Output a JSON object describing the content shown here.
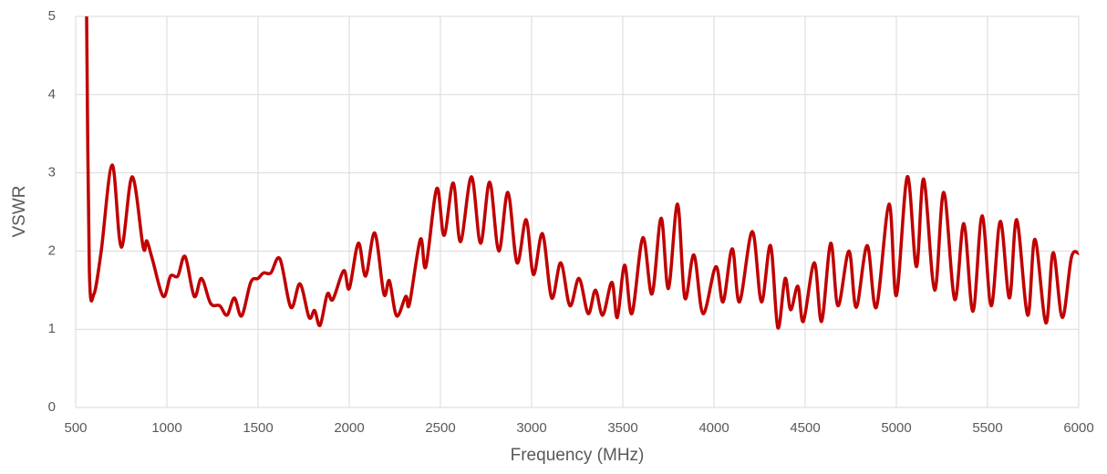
{
  "chart_data": {
    "type": "line",
    "x_label": "Frequency (MHz)",
    "y_label": "VSWR",
    "x": [
      560,
      575,
      600,
      640,
      700,
      750,
      810,
      870,
      890,
      920,
      980,
      1020,
      1060,
      1100,
      1150,
      1190,
      1240,
      1290,
      1330,
      1370,
      1410,
      1460,
      1500,
      1530,
      1570,
      1620,
      1680,
      1730,
      1780,
      1810,
      1840,
      1880,
      1910,
      1970,
      2000,
      2050,
      2090,
      2140,
      2190,
      2220,
      2260,
      2310,
      2330,
      2390,
      2420,
      2480,
      2520,
      2570,
      2610,
      2670,
      2720,
      2770,
      2820,
      2870,
      2920,
      2970,
      3010,
      3060,
      3110,
      3160,
      3210,
      3260,
      3310,
      3350,
      3390,
      3440,
      3470,
      3510,
      3550,
      3610,
      3660,
      3710,
      3750,
      3800,
      3840,
      3890,
      3940,
      4010,
      4050,
      4100,
      4140,
      4210,
      4260,
      4310,
      4350,
      4390,
      4420,
      4460,
      4490,
      4550,
      4590,
      4640,
      4680,
      4740,
      4780,
      4840,
      4890,
      4960,
      5000,
      5060,
      5110,
      5150,
      5210,
      5260,
      5320,
      5370,
      5420,
      5470,
      5520,
      5570,
      5620,
      5660,
      5720,
      5760,
      5820,
      5860,
      5910,
      5960,
      6000
    ],
    "values": [
      5,
      1.75,
      1.45,
      2.0,
      3.1,
      2.05,
      2.95,
      2.05,
      2.13,
      1.9,
      1.42,
      1.68,
      1.68,
      1.93,
      1.42,
      1.65,
      1.33,
      1.3,
      1.18,
      1.4,
      1.17,
      1.6,
      1.65,
      1.72,
      1.72,
      1.9,
      1.28,
      1.58,
      1.15,
      1.24,
      1.05,
      1.45,
      1.38,
      1.75,
      1.52,
      2.1,
      1.68,
      2.23,
      1.45,
      1.62,
      1.17,
      1.42,
      1.32,
      2.15,
      1.8,
      2.8,
      2.2,
      2.87,
      2.12,
      2.95,
      2.1,
      2.88,
      2.0,
      2.75,
      1.85,
      2.4,
      1.7,
      2.22,
      1.4,
      1.85,
      1.3,
      1.65,
      1.2,
      1.5,
      1.18,
      1.6,
      1.15,
      1.82,
      1.2,
      2.17,
      1.45,
      2.42,
      1.52,
      2.6,
      1.4,
      1.95,
      1.2,
      1.8,
      1.35,
      2.03,
      1.35,
      2.25,
      1.35,
      2.07,
      1.02,
      1.65,
      1.25,
      1.55,
      1.1,
      1.85,
      1.1,
      2.1,
      1.3,
      2.0,
      1.28,
      2.07,
      1.28,
      2.6,
      1.43,
      2.95,
      1.8,
      2.92,
      1.5,
      2.75,
      1.38,
      2.35,
      1.23,
      2.45,
      1.3,
      2.38,
      1.4,
      2.4,
      1.18,
      2.15,
      1.08,
      1.98,
      1.15,
      1.92,
      1.97
    ],
    "color": "#c00000",
    "xlim": [
      500,
      6000
    ],
    "xticks": [
      500,
      1000,
      1500,
      2000,
      2500,
      3000,
      3500,
      4000,
      4500,
      5000,
      5500,
      6000
    ],
    "ylim": [
      0,
      5
    ],
    "yticks": [
      0,
      1,
      2,
      3,
      4,
      5
    ],
    "grid": true
  }
}
